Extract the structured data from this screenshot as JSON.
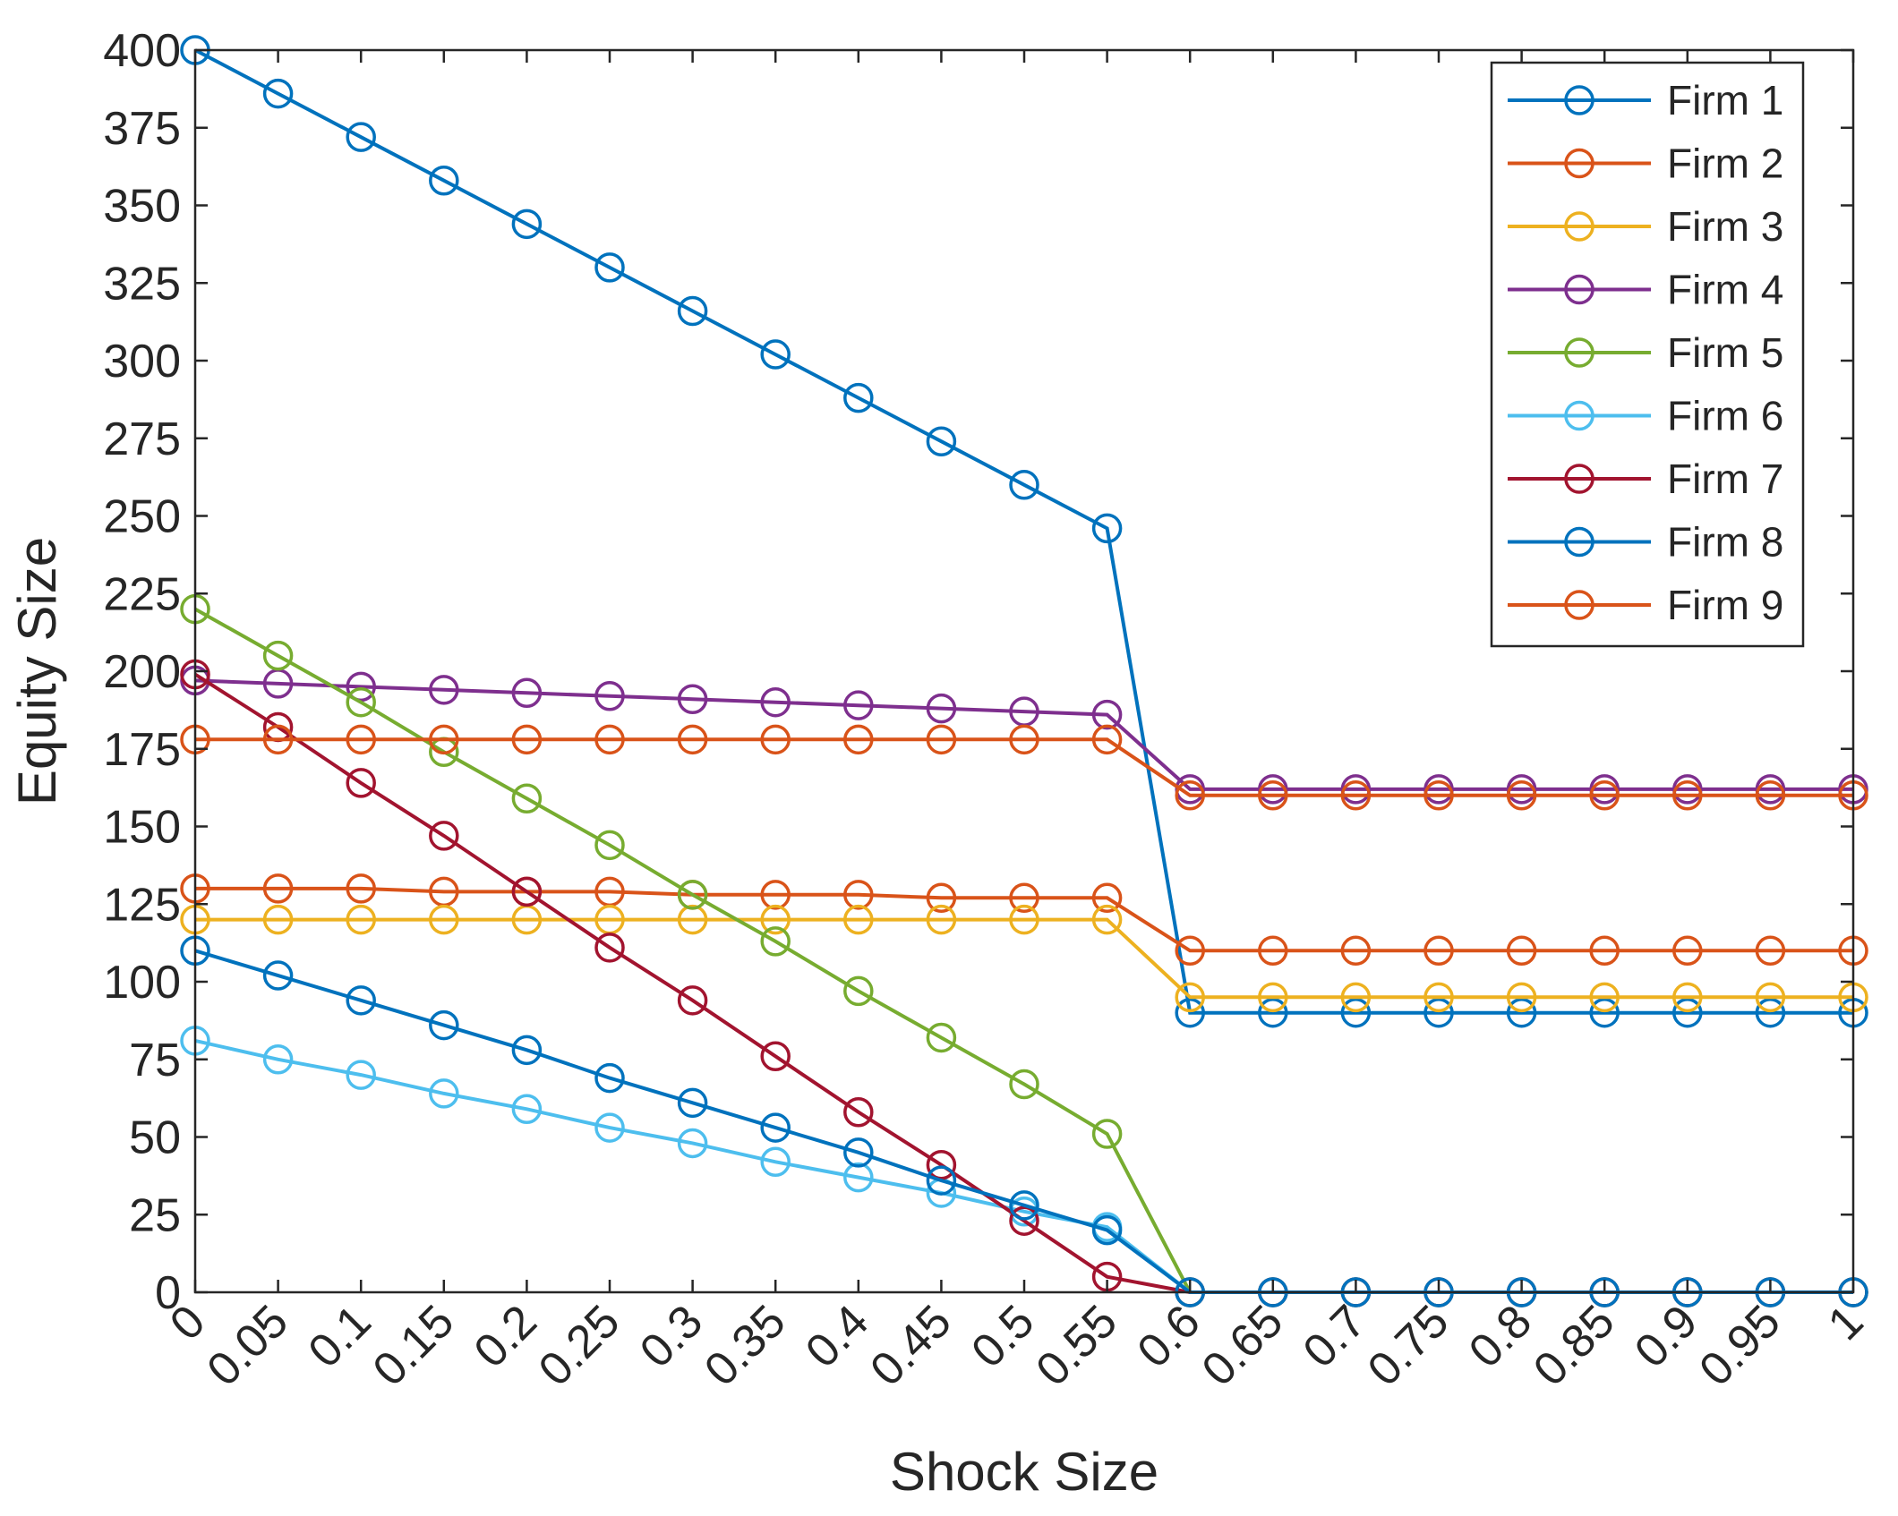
{
  "chart_data": {
    "type": "line",
    "title": "",
    "xlabel": "Shock Size",
    "ylabel": "Equity Size",
    "xlim": [
      0,
      1
    ],
    "ylim": [
      0,
      400
    ],
    "x": [
      0,
      0.05,
      0.1,
      0.15,
      0.2,
      0.25,
      0.3,
      0.35,
      0.4,
      0.45,
      0.5,
      0.55,
      0.6,
      0.65,
      0.7,
      0.75,
      0.8,
      0.85,
      0.9,
      0.95,
      1
    ],
    "x_tick_labels": [
      "0",
      "0.05",
      "0.1",
      "0.15",
      "0.2",
      "0.25",
      "0.3",
      "0.35",
      "0.4",
      "0.45",
      "0.5",
      "0.55",
      "0.6",
      "0.65",
      "0.7",
      "0.75",
      "0.8",
      "0.85",
      "0.9",
      "0.95",
      "1"
    ],
    "y_ticks": [
      0,
      25,
      50,
      75,
      100,
      125,
      150,
      175,
      200,
      225,
      250,
      275,
      300,
      325,
      350,
      375,
      400
    ],
    "y_tick_labels": [
      "0",
      "25",
      "50",
      "75",
      "100",
      "125",
      "150",
      "175",
      "200",
      "225",
      "250",
      "275",
      "300",
      "325",
      "350",
      "375",
      "400"
    ],
    "grid": false,
    "legend_position": "top-right",
    "series": [
      {
        "name": "Firm 1",
        "color": "#0072BD",
        "values": [
          400,
          386,
          372,
          358,
          344,
          330,
          316,
          302,
          288,
          274,
          260,
          246,
          90,
          90,
          90,
          90,
          90,
          90,
          90,
          90,
          90
        ]
      },
      {
        "name": "Firm 2",
        "color": "#D95319",
        "values": [
          130,
          130,
          130,
          129,
          129,
          129,
          128,
          128,
          128,
          127,
          127,
          127,
          110,
          110,
          110,
          110,
          110,
          110,
          110,
          110,
          110
        ]
      },
      {
        "name": "Firm 3",
        "color": "#EDB120",
        "values": [
          120,
          120,
          120,
          120,
          120,
          120,
          120,
          120,
          120,
          120,
          120,
          120,
          95,
          95,
          95,
          95,
          95,
          95,
          95,
          95,
          95
        ]
      },
      {
        "name": "Firm 4",
        "color": "#7E2F8E",
        "values": [
          197,
          196,
          195,
          194,
          193,
          192,
          191,
          190,
          189,
          188,
          187,
          186,
          162,
          162,
          162,
          162,
          162,
          162,
          162,
          162,
          162
        ]
      },
      {
        "name": "Firm 5",
        "color": "#77AC30",
        "values": [
          220,
          205,
          190,
          174,
          159,
          144,
          128,
          113,
          97,
          82,
          67,
          51,
          0,
          0,
          0,
          0,
          0,
          0,
          0,
          0,
          0
        ]
      },
      {
        "name": "Firm 6",
        "color": "#4DBEEE",
        "values": [
          81,
          75,
          70,
          64,
          59,
          53,
          48,
          42,
          37,
          32,
          26,
          21,
          0,
          0,
          0,
          0,
          0,
          0,
          0,
          0,
          0
        ]
      },
      {
        "name": "Firm 7",
        "color": "#A2142F",
        "values": [
          199,
          182,
          164,
          147,
          129,
          111,
          94,
          76,
          58,
          41,
          23,
          5,
          0,
          0,
          0,
          0,
          0,
          0,
          0,
          0,
          0
        ]
      },
      {
        "name": "Firm 8",
        "color": "#0072BD",
        "values": [
          110,
          102,
          94,
          86,
          78,
          69,
          61,
          53,
          45,
          36,
          28,
          20,
          0,
          0,
          0,
          0,
          0,
          0,
          0,
          0,
          0
        ]
      },
      {
        "name": "Firm 9",
        "color": "#D95319",
        "values": [
          178,
          178,
          178,
          178,
          178,
          178,
          178,
          178,
          178,
          178,
          178,
          178,
          160,
          160,
          160,
          160,
          160,
          160,
          160,
          160,
          160
        ]
      }
    ]
  }
}
